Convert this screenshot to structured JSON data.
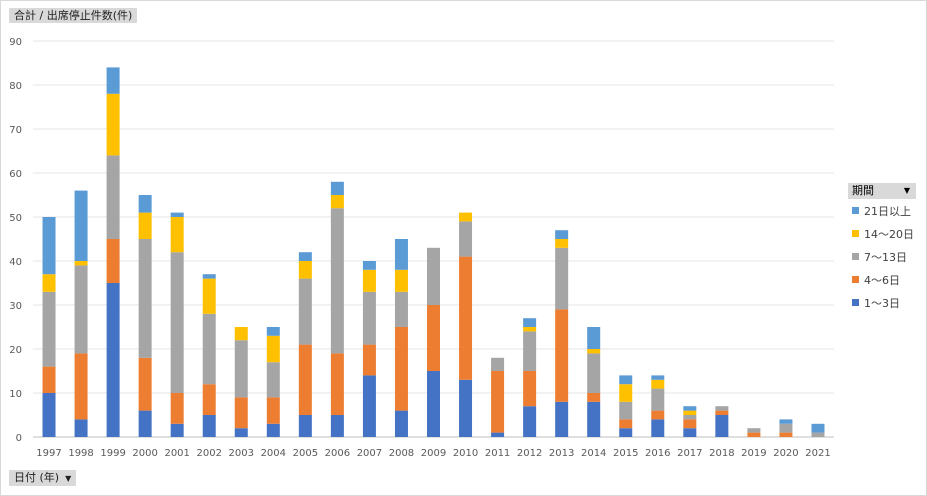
{
  "y_field_label": "合計 / 出席停止件数(件)",
  "x_field_label": "日付 (年)",
  "legend_title": "期間",
  "chart_data": {
    "type": "bar",
    "stacked": true,
    "ylim": [
      0,
      90
    ],
    "y_ticks": [
      0,
      10,
      20,
      30,
      40,
      50,
      60,
      70,
      80,
      90
    ],
    "grid": true,
    "legend_position": "right",
    "categories": [
      "1997",
      "1998",
      "1999",
      "2000",
      "2001",
      "2002",
      "2003",
      "2004",
      "2005",
      "2006",
      "2007",
      "2008",
      "2009",
      "2010",
      "2011",
      "2012",
      "2013",
      "2014",
      "2015",
      "2016",
      "2017",
      "2018",
      "2019",
      "2020",
      "2021"
    ],
    "series": [
      {
        "name": "1～3日",
        "color": "#4472c4",
        "values": [
          10,
          4,
          35,
          6,
          3,
          5,
          2,
          3,
          5,
          5,
          14,
          6,
          15,
          13,
          1,
          7,
          8,
          8,
          2,
          4,
          2,
          5,
          0,
          0,
          0
        ]
      },
      {
        "name": "4～6日",
        "color": "#ed7d31",
        "values": [
          6,
          15,
          10,
          12,
          7,
          7,
          7,
          6,
          16,
          14,
          7,
          19,
          15,
          28,
          14,
          8,
          21,
          2,
          2,
          2,
          2,
          1,
          1,
          1,
          0
        ]
      },
      {
        "name": "7～13日",
        "color": "#a5a5a5",
        "values": [
          17,
          20,
          19,
          27,
          32,
          16,
          13,
          8,
          15,
          33,
          12,
          8,
          13,
          8,
          3,
          9,
          14,
          9,
          4,
          5,
          1,
          1,
          1,
          2,
          1
        ]
      },
      {
        "name": "14～20日",
        "color": "#ffc000",
        "values": [
          4,
          1,
          14,
          6,
          8,
          8,
          3,
          6,
          4,
          3,
          5,
          5,
          0,
          2,
          0,
          1,
          2,
          1,
          4,
          2,
          1,
          0,
          0,
          0,
          0
        ]
      },
      {
        "name": "21日以上",
        "color": "#5b9bd5",
        "values": [
          13,
          16,
          6,
          4,
          1,
          1,
          0,
          2,
          2,
          3,
          2,
          7,
          0,
          0,
          0,
          2,
          2,
          5,
          2,
          1,
          1,
          0,
          0,
          1,
          2
        ]
      }
    ]
  }
}
